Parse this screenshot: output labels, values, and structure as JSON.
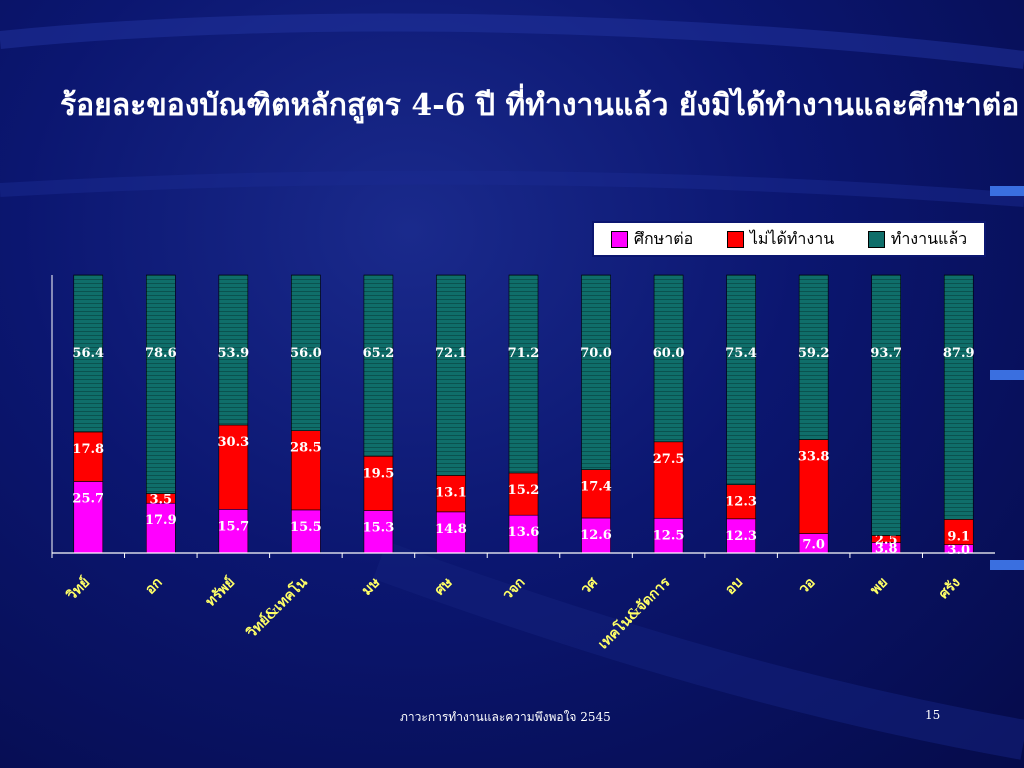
{
  "slide": {
    "title": "ร้อยละของบัณฑิตหลักสูตร 4-6 ปี ที่ทำงานแล้ว ยังมิได้ทำงานและศึกษาต่อ",
    "footer": "ภาวะการทำงานและความพึงพอใจ 2545",
    "page_number": "15"
  },
  "colors": {
    "study": "#ff00ff",
    "unemployed": "#ff0000",
    "employed": "#0f6e6a",
    "label_text": "#ffff66",
    "axis": "#ffffff"
  },
  "chart_data": {
    "type": "bar",
    "stacked": true,
    "percent_stacked": true,
    "title": "ร้อยละของบัณฑิตหลักสูตร 4-6 ปี ที่ทำงานแล้ว ยังมิได้ทำงานและศึกษาต่อ",
    "xlabel": "",
    "ylabel": "",
    "ylim": [
      0,
      100
    ],
    "legend_position": "top-right",
    "grid": false,
    "categories": [
      "วิทย์",
      "อก",
      "ทรัพย์",
      "วิทย์&เทคโน",
      "มษ",
      "ศษ",
      "วจก",
      "วศ",
      "เทคโน&จัดการ",
      "อบ",
      "วอ",
      "พย",
      "ศรัง"
    ],
    "series": [
      {
        "name": "ศึกษาต่อ",
        "values": [
          25.7,
          17.9,
          15.7,
          15.5,
          15.3,
          14.8,
          13.6,
          12.6,
          12.5,
          12.3,
          7.0,
          3.8,
          3.0
        ]
      },
      {
        "name": "ไม่ได้ทำงาน",
        "values": [
          17.8,
          3.5,
          30.3,
          28.5,
          19.5,
          13.1,
          15.2,
          17.4,
          27.5,
          12.3,
          33.8,
          2.5,
          9.1
        ]
      },
      {
        "name": "ทำงานแล้ว",
        "values": [
          56.4,
          78.6,
          53.9,
          56.0,
          65.2,
          72.1,
          71.2,
          70.0,
          60.0,
          75.4,
          59.2,
          93.7,
          87.9
        ]
      }
    ]
  }
}
